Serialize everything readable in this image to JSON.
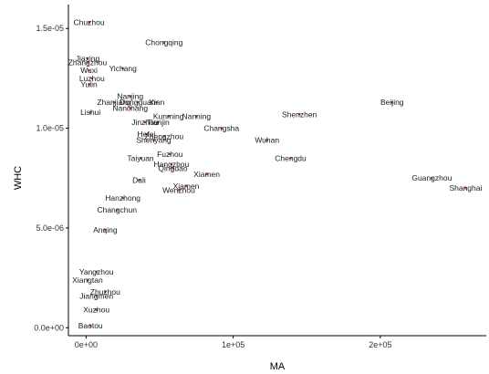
{
  "chart_data": {
    "type": "scatter",
    "title": "",
    "xlabel": "MA",
    "ylabel": "WHC",
    "xlim": [
      -12000,
      272000
    ],
    "ylim": [
      -4e-07,
      1.62e-05
    ],
    "x_ticks": [
      0,
      100000,
      200000
    ],
    "x_tick_labels": [
      "0e+00",
      "1e+05",
      "2e+05"
    ],
    "y_ticks": [
      0,
      5e-06,
      1e-05,
      1.5e-05
    ],
    "y_tick_labels": [
      "0.0e+00",
      "5.0e-06",
      "1.0e-05",
      "1.5e-05"
    ],
    "grid": false,
    "point_color": "#c0392b",
    "points": [
      {
        "label": "Chuzhou",
        "x": 2000,
        "y": 1.53e-05
      },
      {
        "label": "Chongqing",
        "x": 53000,
        "y": 1.43e-05
      },
      {
        "label": "Jiaxing",
        "x": 1000,
        "y": 1.35e-05
      },
      {
        "label": "Zhangzhou",
        "x": 1000,
        "y": 1.33e-05
      },
      {
        "label": "Wuxi",
        "x": 2000,
        "y": 1.29e-05
      },
      {
        "label": "Yichang",
        "x": 25000,
        "y": 1.3e-05
      },
      {
        "label": "Luzhou",
        "x": 4000,
        "y": 1.25e-05
      },
      {
        "label": "Yulin",
        "x": 2000,
        "y": 1.22e-05
      },
      {
        "label": "Nanjing",
        "x": 30000,
        "y": 1.16e-05
      },
      {
        "label": "Zhanjiang",
        "x": 19000,
        "y": 1.13e-05
      },
      {
        "label": "Dongguan",
        "x": 35000,
        "y": 1.13e-05
      },
      {
        "label": "Xian",
        "x": 48000,
        "y": 1.13e-05
      },
      {
        "label": "Nanchang",
        "x": 30000,
        "y": 1.1e-05
      },
      {
        "label": "Lishui",
        "x": 3000,
        "y": 1.08e-05
      },
      {
        "label": "Kunming",
        "x": 56000,
        "y": 1.06e-05
      },
      {
        "label": "Nanning",
        "x": 75000,
        "y": 1.06e-05
      },
      {
        "label": "Beijing",
        "x": 208000,
        "y": 1.13e-05
      },
      {
        "label": "Shenzhen",
        "x": 145000,
        "y": 1.07e-05
      },
      {
        "label": "Jinzhou",
        "x": 40000,
        "y": 1.03e-05
      },
      {
        "label": "Tianjin",
        "x": 49000,
        "y": 1.03e-05
      },
      {
        "label": "Changsha",
        "x": 92000,
        "y": 1e-05
      },
      {
        "label": "Hefei",
        "x": 41000,
        "y": 9.7e-06
      },
      {
        "label": "Zhengzhou",
        "x": 53000,
        "y": 9.6e-06
      },
      {
        "label": "Shenyang",
        "x": 46000,
        "y": 9.4e-06
      },
      {
        "label": "Wuhan",
        "x": 123000,
        "y": 9.4e-06
      },
      {
        "label": "Fuzhou",
        "x": 57000,
        "y": 8.7e-06
      },
      {
        "label": "Chengdu",
        "x": 139000,
        "y": 8.5e-06
      },
      {
        "label": "Taiyuan",
        "x": 37000,
        "y": 8.5e-06
      },
      {
        "label": "Hangzhou",
        "x": 58000,
        "y": 8.2e-06
      },
      {
        "label": "Qingdao",
        "x": 59000,
        "y": 8e-06
      },
      {
        "label": "Xiamen",
        "x": 82000,
        "y": 7.7e-06
      },
      {
        "label": "Guangzhou",
        "x": 235000,
        "y": 7.5e-06
      },
      {
        "label": "Shanghai",
        "x": 258000,
        "y": 7e-06
      },
      {
        "label": "Dali",
        "x": 36000,
        "y": 7.4e-06
      },
      {
        "label": "Xiamen",
        "x": 68000,
        "y": 7.1e-06
      },
      {
        "label": "Wenzhou",
        "x": 63000,
        "y": 6.9e-06
      },
      {
        "label": "Hanzhong",
        "x": 25000,
        "y": 6.5e-06
      },
      {
        "label": "Changchun",
        "x": 21000,
        "y": 5.9e-06
      },
      {
        "label": "Anqing",
        "x": 13000,
        "y": 4.9e-06
      },
      {
        "label": "Xiangtan",
        "x": 1000,
        "y": 2.4e-06
      },
      {
        "label": "Yangzhou",
        "x": 7000,
        "y": 2.8e-06
      },
      {
        "label": "Zhuzhou",
        "x": 13000,
        "y": 1.8e-06
      },
      {
        "label": "Jiangmen",
        "x": 7000,
        "y": 1.6e-06
      },
      {
        "label": "Xuzhou",
        "x": 7000,
        "y": 9e-07
      },
      {
        "label": "Baotou",
        "x": 3000,
        "y": 1e-07
      }
    ]
  }
}
